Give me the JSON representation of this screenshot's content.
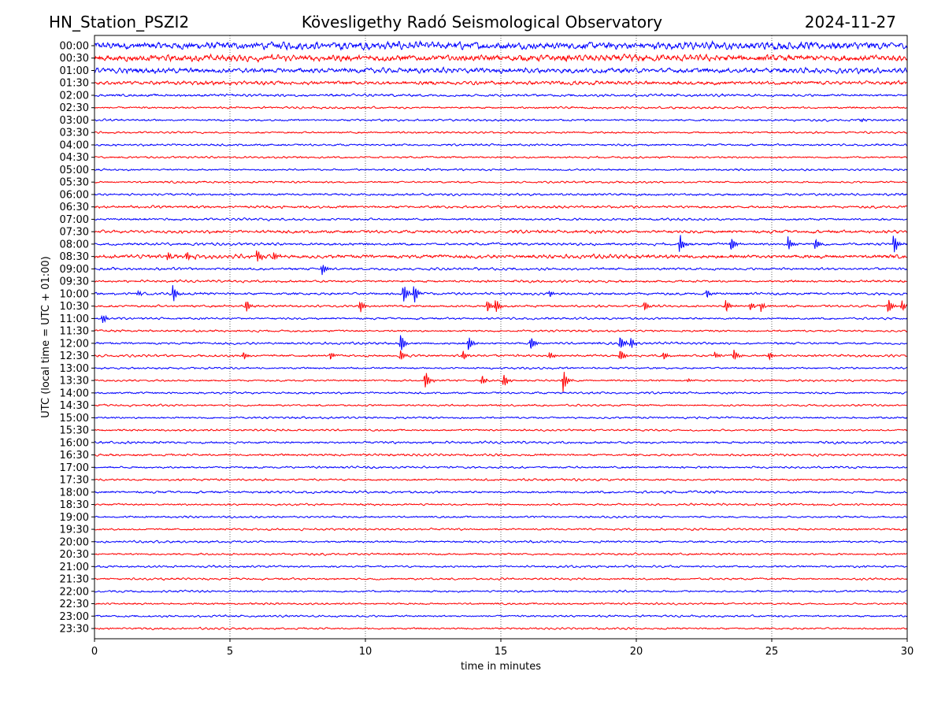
{
  "chart_data": {
    "type": "line",
    "title_left": "HN_Station_PSZI2",
    "title": "Kövesligethy Radó Seismological Observatory",
    "title_right": "2024-11-27",
    "xlabel": "time in minutes",
    "ylabel": "UTC (local time = UTC + 01:00)",
    "xlim": [
      0,
      30
    ],
    "xticks": [
      "0",
      "5",
      "10",
      "15",
      "20",
      "25",
      "30"
    ],
    "grid": "vertical dotted at x ticks",
    "series_colors": [
      "#0000ff",
      "#ff0000"
    ],
    "rows": [
      "00:00",
      "00:30",
      "01:00",
      "01:30",
      "02:00",
      "02:30",
      "03:00",
      "03:30",
      "04:00",
      "04:30",
      "05:00",
      "05:30",
      "06:00",
      "06:30",
      "07:00",
      "07:30",
      "08:00",
      "08:30",
      "09:00",
      "09:30",
      "10:00",
      "10:30",
      "11:00",
      "11:30",
      "12:00",
      "12:30",
      "13:00",
      "13:30",
      "14:00",
      "14:30",
      "15:00",
      "15:30",
      "16:00",
      "16:30",
      "17:00",
      "17:30",
      "18:00",
      "18:30",
      "19:00",
      "19:30",
      "20:00",
      "20:30",
      "21:00",
      "21:30",
      "22:00",
      "22:30",
      "23:00",
      "23:30"
    ],
    "noise_level": [
      6,
      5,
      4,
      3,
      2,
      1.6,
      1.6,
      1.5,
      1.6,
      1.5,
      1.5,
      1.5,
      1.8,
      2,
      1.8,
      2.4,
      2,
      3,
      2,
      1.8,
      2,
      1.8,
      1.6,
      1.6,
      1.8,
      1.8,
      1.5,
      1.5,
      1.6,
      1.5,
      1.6,
      1.5,
      1.8,
      1.8,
      1.6,
      1.6,
      1.8,
      1.6,
      1.5,
      1.6,
      1.6,
      1.6,
      1.6,
      1.6,
      1.6,
      1.5,
      1.6,
      1.5
    ],
    "events": [
      {
        "row": "03:00",
        "minute": 28.3,
        "amplitude": 3
      },
      {
        "row": "08:00",
        "minute": 21.6,
        "amplitude": 16
      },
      {
        "row": "08:00",
        "minute": 23.5,
        "amplitude": 14
      },
      {
        "row": "08:00",
        "minute": 25.6,
        "amplitude": 12
      },
      {
        "row": "08:00",
        "minute": 26.6,
        "amplitude": 9
      },
      {
        "row": "08:00",
        "minute": 29.5,
        "amplitude": 16
      },
      {
        "row": "08:30",
        "minute": 2.7,
        "amplitude": 9
      },
      {
        "row": "08:30",
        "minute": 3.4,
        "amplitude": 8
      },
      {
        "row": "08:30",
        "minute": 6.0,
        "amplitude": 12
      },
      {
        "row": "08:30",
        "minute": 6.6,
        "amplitude": 8
      },
      {
        "row": "09:00",
        "minute": 8.4,
        "amplitude": 9
      },
      {
        "row": "10:00",
        "minute": 1.6,
        "amplitude": 4
      },
      {
        "row": "10:00",
        "minute": 2.9,
        "amplitude": 14
      },
      {
        "row": "10:00",
        "minute": 11.4,
        "amplitude": 18
      },
      {
        "row": "10:00",
        "minute": 11.8,
        "amplitude": 16
      },
      {
        "row": "10:00",
        "minute": 16.8,
        "amplitude": 6
      },
      {
        "row": "10:00",
        "minute": 22.6,
        "amplitude": 7
      },
      {
        "row": "10:30",
        "minute": 5.6,
        "amplitude": 10
      },
      {
        "row": "10:30",
        "minute": 9.8,
        "amplitude": 10
      },
      {
        "row": "10:30",
        "minute": 14.5,
        "amplitude": 10
      },
      {
        "row": "10:30",
        "minute": 14.8,
        "amplitude": 12
      },
      {
        "row": "10:30",
        "minute": 20.3,
        "amplitude": 8
      },
      {
        "row": "10:30",
        "minute": 23.3,
        "amplitude": 10
      },
      {
        "row": "10:30",
        "minute": 24.2,
        "amplitude": 7
      },
      {
        "row": "10:30",
        "minute": 24.6,
        "amplitude": 7
      },
      {
        "row": "10:30",
        "minute": 29.3,
        "amplitude": 12
      },
      {
        "row": "10:30",
        "minute": 29.8,
        "amplitude": 8
      },
      {
        "row": "11:00",
        "minute": 0.3,
        "amplitude": 8
      },
      {
        "row": "12:00",
        "minute": 11.3,
        "amplitude": 16
      },
      {
        "row": "12:00",
        "minute": 13.8,
        "amplitude": 12
      },
      {
        "row": "12:00",
        "minute": 16.1,
        "amplitude": 12
      },
      {
        "row": "12:00",
        "minute": 19.4,
        "amplitude": 12
      },
      {
        "row": "12:00",
        "minute": 19.8,
        "amplitude": 9
      },
      {
        "row": "12:30",
        "minute": 5.5,
        "amplitude": 7
      },
      {
        "row": "12:30",
        "minute": 8.7,
        "amplitude": 7
      },
      {
        "row": "12:30",
        "minute": 11.3,
        "amplitude": 10
      },
      {
        "row": "12:30",
        "minute": 13.6,
        "amplitude": 8
      },
      {
        "row": "12:30",
        "minute": 16.8,
        "amplitude": 6
      },
      {
        "row": "12:30",
        "minute": 19.4,
        "amplitude": 10
      },
      {
        "row": "12:30",
        "minute": 21.0,
        "amplitude": 7
      },
      {
        "row": "12:30",
        "minute": 22.9,
        "amplitude": 7
      },
      {
        "row": "12:30",
        "minute": 23.6,
        "amplitude": 10
      },
      {
        "row": "12:30",
        "minute": 24.9,
        "amplitude": 7
      },
      {
        "row": "13:30",
        "minute": 12.2,
        "amplitude": 16
      },
      {
        "row": "13:30",
        "minute": 14.3,
        "amplitude": 9
      },
      {
        "row": "13:30",
        "minute": 15.1,
        "amplitude": 12
      },
      {
        "row": "13:30",
        "minute": 17.3,
        "amplitude": 16
      },
      {
        "row": "13:30",
        "minute": 21.9,
        "amplitude": 3
      }
    ]
  }
}
